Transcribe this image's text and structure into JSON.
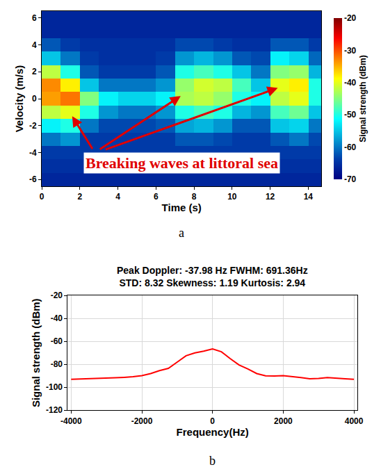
{
  "chart_data": [
    {
      "type": "heatmap",
      "panel_label": "a",
      "x_label": "Time (s)",
      "y_label": "Velocity (m/s)",
      "x": [
        0.5,
        1.5,
        2.5,
        3.5,
        4.5,
        5.5,
        6.5,
        7.5,
        8.5,
        9.5,
        10.5,
        11.5,
        12.5,
        13.5,
        14.5
      ],
      "y": [
        -6,
        -5,
        -4,
        -3,
        -2,
        -1,
        0,
        1,
        2,
        3,
        4,
        5,
        6
      ],
      "z": [
        [
          -66,
          -66,
          -66,
          -66,
          -66,
          -66,
          -66,
          -66,
          -66,
          -66,
          -66,
          -66,
          -66,
          -66,
          -66
        ],
        [
          -65,
          -65,
          -65,
          -65,
          -65,
          -65,
          -65,
          -65,
          -65,
          -65,
          -65,
          -65,
          -65,
          -65,
          -65
        ],
        [
          -64,
          -64,
          -64,
          -64,
          -64,
          -64,
          -64,
          -64,
          -64,
          -64,
          -64,
          -64,
          -64,
          -64,
          -64
        ],
        [
          -60,
          -58,
          -64,
          -64,
          -64,
          -64,
          -64,
          -62,
          -62,
          -63,
          -64,
          -64,
          -62,
          -60,
          -63
        ],
        [
          -52,
          -50,
          -60,
          -63,
          -63,
          -63,
          -62,
          -57,
          -56,
          -58,
          -62,
          -62,
          -55,
          -54,
          -60
        ],
        [
          -42,
          -40,
          -50,
          -58,
          -60,
          -60,
          -58,
          -50,
          -48,
          -50,
          -56,
          -58,
          -48,
          -46,
          -55
        ],
        [
          -34,
          -32,
          -45,
          -52,
          -54,
          -54,
          -52,
          -43,
          -42,
          -44,
          -50,
          -52,
          -42,
          -40,
          -50
        ],
        [
          -33,
          -38,
          -55,
          -60,
          -60,
          -60,
          -58,
          -44,
          -41,
          -42,
          -48,
          -55,
          -40,
          -38,
          -50
        ],
        [
          -42,
          -50,
          -62,
          -64,
          -64,
          -64,
          -62,
          -50,
          -48,
          -50,
          -55,
          -60,
          -45,
          -44,
          -56
        ],
        [
          -55,
          -60,
          -64,
          -65,
          -65,
          -65,
          -64,
          -58,
          -56,
          -58,
          -62,
          -63,
          -52,
          -54,
          -61
        ],
        [
          -62,
          -64,
          -65,
          -65,
          -65,
          -65,
          -65,
          -63,
          -63,
          -64,
          -65,
          -65,
          -62,
          -62,
          -64
        ],
        [
          -66,
          -66,
          -66,
          -66,
          -66,
          -66,
          -66,
          -66,
          -66,
          -66,
          -66,
          -66,
          -66,
          -66,
          -66
        ],
        [
          -66,
          -66,
          -66,
          -66,
          -66,
          -66,
          -66,
          -66,
          -66,
          -66,
          -66,
          -66,
          -66,
          -66,
          -66
        ]
      ],
      "color": "Jet",
      "colorbar": {
        "title": "Signal strength (dBm)",
        "range": [
          -70,
          -20
        ],
        "ticks": [
          -70,
          -60,
          -50,
          -40,
          -30,
          -20
        ]
      },
      "xlim": [
        0,
        14.7
      ],
      "xticks": [
        0,
        2,
        4,
        6,
        8,
        10,
        12,
        14
      ],
      "ylim": [
        -6.5,
        6.5
      ],
      "yticks": [
        -6,
        -4,
        -2,
        0,
        2,
        4,
        6
      ],
      "annotations": [
        "Breaking waves at littoral sea"
      ],
      "grid": false
    },
    {
      "type": "line",
      "panel_label": "b",
      "title": "Peak Doppler: -37.98 Hz FWHM: 691.36Hz",
      "subtitle": "STD: 8.32 Skewness: 1.19 Kurtosis: 2.94",
      "x_label": "Frequency(Hz)",
      "y_label": "Signal strength (dBm)",
      "x": [
        -4000,
        -3750,
        -3500,
        -3250,
        -3000,
        -2750,
        -2500,
        -2250,
        -2000,
        -1750,
        -1500,
        -1250,
        -1000,
        -750,
        -500,
        -250,
        0,
        250,
        500,
        750,
        1000,
        1250,
        1500,
        1750,
        2000,
        2250,
        2500,
        2750,
        3000,
        3250,
        3500,
        3750,
        4000
      ],
      "values": [
        -93,
        -92.8,
        -92.5,
        -92.3,
        -92,
        -91.7,
        -91.3,
        -90.8,
        -89.8,
        -88,
        -85.5,
        -83.5,
        -78,
        -72.5,
        -70,
        -68.5,
        -66.5,
        -69,
        -75,
        -80.5,
        -84,
        -88,
        -90,
        -90.2,
        -89.8,
        -90.5,
        -91.5,
        -92.5,
        -92.3,
        -91.5,
        -91.8,
        -92.5,
        -93
      ],
      "color": "#ff0000",
      "xlim": [
        -4096,
        4096
      ],
      "xticks": [
        -4000,
        -2000,
        0,
        2000,
        4000
      ],
      "ylim": [
        -120,
        -20
      ],
      "yticks": [
        -120,
        -100,
        -80,
        -60,
        -40,
        -20
      ],
      "grid": true
    }
  ]
}
